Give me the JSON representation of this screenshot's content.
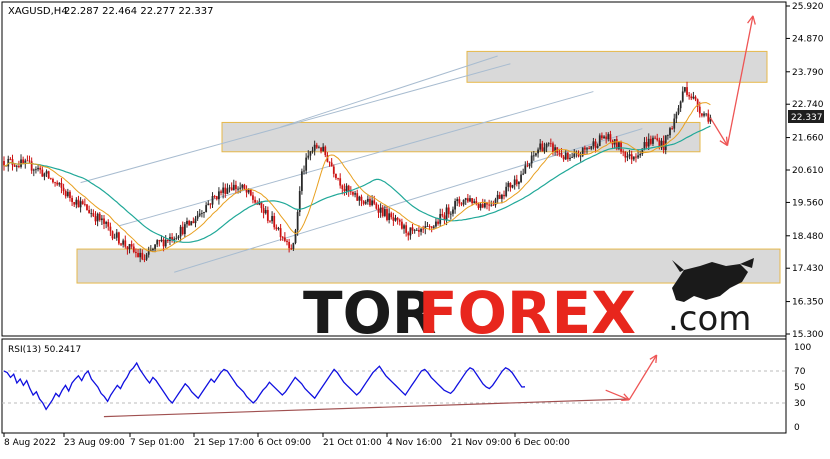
{
  "header": {
    "symbol": "XAGUSD,H4",
    "ohlc": "22.287 22.464 22.277 22.337"
  },
  "current_price": "22.337",
  "rsi_label": "RSI(13) 50.2417",
  "watermark": {
    "part1": "TOR",
    "part2": "FOREX",
    "part3": ".com"
  },
  "colors": {
    "bull": "#2a2a2a",
    "bear": "#cc1111",
    "ma_fast": "#e8a020",
    "ma_slow": "#20a898",
    "rsi": "#1010e0",
    "zone": "#d9d9d9",
    "zone_border": "#e6b84a",
    "arrow": "#ee5555",
    "channel": "#a8bcd0",
    "price_badge_bg": "#1f1f1f",
    "watermark_dark": "#1a1a1a",
    "watermark_red": "#e8261d"
  },
  "chart_data": [
    {
      "type": "candlestick",
      "title": "XAGUSD,H4",
      "ylim": [
        15.2,
        26.0
      ],
      "y_ticks": [
        "25.920",
        "24.870",
        "23.790",
        "22.740",
        "21.660",
        "20.610",
        "19.560",
        "18.480",
        "17.430",
        "16.350",
        "15.300"
      ],
      "x_ticks": [
        "8 Aug 2022",
        "23 Aug 09:00",
        "7 Sep 01:00",
        "21 Sep 17:00",
        "6 Oct 09:00",
        "21 Oct 01:00",
        "4 Nov 16:00",
        "21 Nov 09:00",
        "6 Dec 00:00"
      ],
      "close_path": [
        [
          0,
          20.9
        ],
        [
          8,
          20.8
        ],
        [
          15,
          20.7
        ],
        [
          22,
          20.3
        ],
        [
          30,
          19.8
        ],
        [
          38,
          19.4
        ],
        [
          45,
          19.0
        ],
        [
          52,
          18.5
        ],
        [
          60,
          18.0
        ],
        [
          66,
          17.7
        ],
        [
          72,
          18.2
        ],
        [
          80,
          18.5
        ],
        [
          88,
          18.9
        ],
        [
          94,
          19.4
        ],
        [
          100,
          19.8
        ],
        [
          106,
          20.1
        ],
        [
          112,
          20.0
        ],
        [
          118,
          19.6
        ],
        [
          124,
          19.1
        ],
        [
          128,
          18.8
        ],
        [
          132,
          18.4
        ],
        [
          136,
          18.1
        ],
        [
          140,
          20.5
        ],
        [
          144,
          21.2
        ],
        [
          148,
          21.4
        ],
        [
          152,
          21.0
        ],
        [
          156,
          20.5
        ],
        [
          160,
          20.0
        ],
        [
          165,
          19.7
        ],
        [
          170,
          19.6
        ],
        [
          176,
          19.4
        ],
        [
          182,
          19.0
        ],
        [
          188,
          18.7
        ],
        [
          194,
          18.5
        ],
        [
          200,
          18.7
        ],
        [
          206,
          19.1
        ],
        [
          212,
          19.5
        ],
        [
          218,
          19.7
        ],
        [
          224,
          19.5
        ],
        [
          230,
          19.6
        ],
        [
          236,
          20.0
        ],
        [
          241,
          20.3
        ],
        [
          246,
          20.7
        ],
        [
          252,
          21.4
        ],
        [
          258,
          21.3
        ],
        [
          262,
          21.1
        ],
        [
          266,
          20.9
        ],
        [
          272,
          21.2
        ],
        [
          278,
          21.5
        ],
        [
          282,
          21.7
        ],
        [
          286,
          21.5
        ],
        [
          290,
          21.3
        ],
        [
          294,
          21.0
        ],
        [
          298,
          21.2
        ],
        [
          302,
          21.5
        ],
        [
          306,
          21.6
        ],
        [
          310,
          21.4
        ],
        [
          316,
          22.4
        ],
        [
          320,
          23.3
        ],
        [
          324,
          22.9
        ],
        [
          328,
          22.5
        ],
        [
          332,
          22.3
        ]
      ],
      "zones": [
        [
          23.45,
          24.45
        ],
        [
          21.2,
          22.15
        ],
        [
          16.95,
          18.05
        ]
      ],
      "channel_lines": [
        {
          "from": [
            36,
            20.2
          ],
          "to": [
            238,
            24.05
          ]
        },
        {
          "from": [
            54,
            18.8
          ],
          "to": [
            277,
            23.15
          ]
        },
        {
          "from": [
            80,
            17.3
          ],
          "to": [
            300,
            21.95
          ]
        },
        {
          "from": [
            130,
            22.0
          ],
          "to": [
            232,
            24.3
          ]
        }
      ],
      "forecast_arrows": [
        {
          "from": [
            332,
            22.3
          ],
          "to": [
            340,
            21.4
          ]
        },
        {
          "from": [
            340,
            21.4
          ],
          "to": [
            352,
            25.6
          ]
        }
      ]
    },
    {
      "type": "line",
      "title": "RSI(13) 50.2417",
      "ylim": [
        0,
        100
      ],
      "y_ticks": [
        "100",
        "70",
        "50",
        "30",
        "0"
      ],
      "values": [
        70,
        68,
        62,
        66,
        55,
        60,
        52,
        58,
        48,
        40,
        44,
        35,
        30,
        22,
        28,
        34,
        42,
        38,
        46,
        52,
        45,
        55,
        60,
        64,
        58,
        66,
        70,
        60,
        55,
        50,
        42,
        38,
        32,
        40,
        46,
        52,
        48,
        56,
        62,
        70,
        74,
        80,
        72,
        66,
        60,
        55,
        62,
        58,
        52,
        46,
        40,
        34,
        30,
        36,
        42,
        48,
        54,
        50,
        44,
        40,
        36,
        42,
        48,
        54,
        60,
        56,
        62,
        68,
        72,
        70,
        64,
        58,
        52,
        48,
        44,
        38,
        34,
        30,
        34,
        40,
        46,
        50,
        56,
        52,
        48,
        44,
        40,
        44,
        50,
        56,
        62,
        58,
        54,
        48,
        44,
        40,
        36,
        42,
        48,
        54,
        60,
        66,
        72,
        68,
        62,
        56,
        52,
        48,
        44,
        40,
        44,
        50,
        56,
        62,
        68,
        72,
        76,
        70,
        64,
        60,
        56,
        52,
        48,
        44,
        40,
        46,
        52,
        58,
        64,
        70,
        72,
        68,
        62,
        58,
        54,
        50,
        46,
        44,
        42,
        46,
        52,
        58,
        64,
        70,
        74,
        72,
        66,
        60,
        54,
        50,
        48,
        52,
        58,
        64,
        70,
        74,
        72,
        68,
        62,
        56,
        50,
        50.24
      ],
      "trendline": {
        "from": [
          0.13,
          13
        ],
        "to": [
          0.8,
          35
        ]
      },
      "forecast_arrows": [
        {
          "from": [
            0.77,
            46
          ],
          "to": [
            0.8,
            34
          ]
        },
        {
          "from": [
            0.8,
            34
          ],
          "to": [
            0.835,
            90
          ]
        }
      ]
    }
  ]
}
